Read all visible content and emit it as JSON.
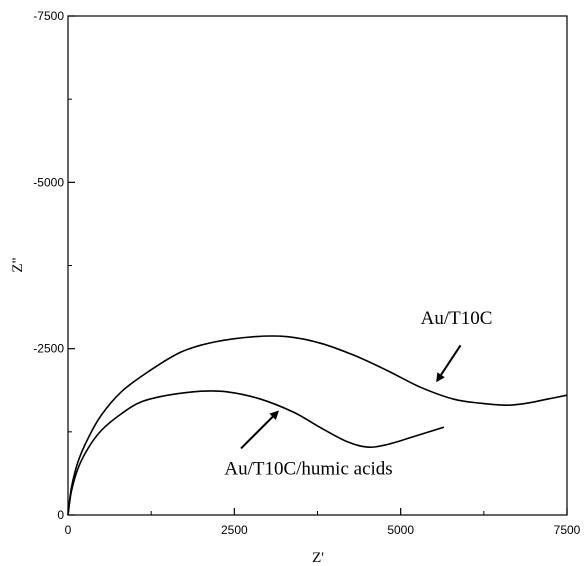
{
  "chart_data": {
    "type": "line",
    "title": "",
    "xlabel": "Z'",
    "ylabel": "Z\"",
    "xlim": [
      0,
      7500
    ],
    "ylim": [
      0,
      -7500
    ],
    "y_inverted": true,
    "x_ticks": [
      {
        "value": 0,
        "label": "0"
      },
      {
        "value": 2500,
        "label": "2500"
      },
      {
        "value": 5000,
        "label": "5000"
      },
      {
        "value": 7500,
        "label": "7500"
      }
    ],
    "y_ticks": [
      {
        "value": 0,
        "label": "0"
      },
      {
        "value": -2500,
        "label": "-2500"
      },
      {
        "value": -5000,
        "label": "-5000"
      },
      {
        "value": -7500,
        "label": "-7500"
      }
    ],
    "grid": false,
    "legend": "none",
    "series": [
      {
        "name": "Au/T10C",
        "x": [
          0,
          50,
          150,
          300,
          500,
          800,
          1200,
          1700,
          2200,
          2800,
          3300,
          3800,
          4300,
          4800,
          5300,
          5800,
          6200,
          6600,
          6900,
          7200,
          7500
        ],
        "y": [
          0,
          -400,
          -800,
          -1150,
          -1500,
          -1850,
          -2150,
          -2450,
          -2600,
          -2680,
          -2680,
          -2580,
          -2400,
          -2170,
          -1920,
          -1740,
          -1680,
          -1650,
          -1680,
          -1740,
          -1800
        ]
      },
      {
        "name": "Au/T10C/humic acids",
        "x": [
          0,
          50,
          150,
          300,
          500,
          800,
          1100,
          1500,
          2000,
          2400,
          2900,
          3400,
          3800,
          4200,
          4500,
          4800,
          5200,
          5650
        ],
        "y": [
          0,
          -350,
          -700,
          -1000,
          -1270,
          -1520,
          -1700,
          -1800,
          -1860,
          -1850,
          -1740,
          -1540,
          -1310,
          -1100,
          -1020,
          -1060,
          -1180,
          -1320
        ]
      }
    ],
    "annotations": [
      {
        "text": "Au/T10C",
        "x": 5300,
        "y": -2870,
        "arrow_from": [
          5900,
          -2550
        ],
        "arrow_to": [
          5550,
          -2020
        ]
      },
      {
        "text": "Au/T10C/humic acids",
        "x": 2350,
        "y": -610,
        "arrow_from": [
          2600,
          -1000
        ],
        "arrow_to": [
          3150,
          -1550
        ]
      }
    ]
  }
}
